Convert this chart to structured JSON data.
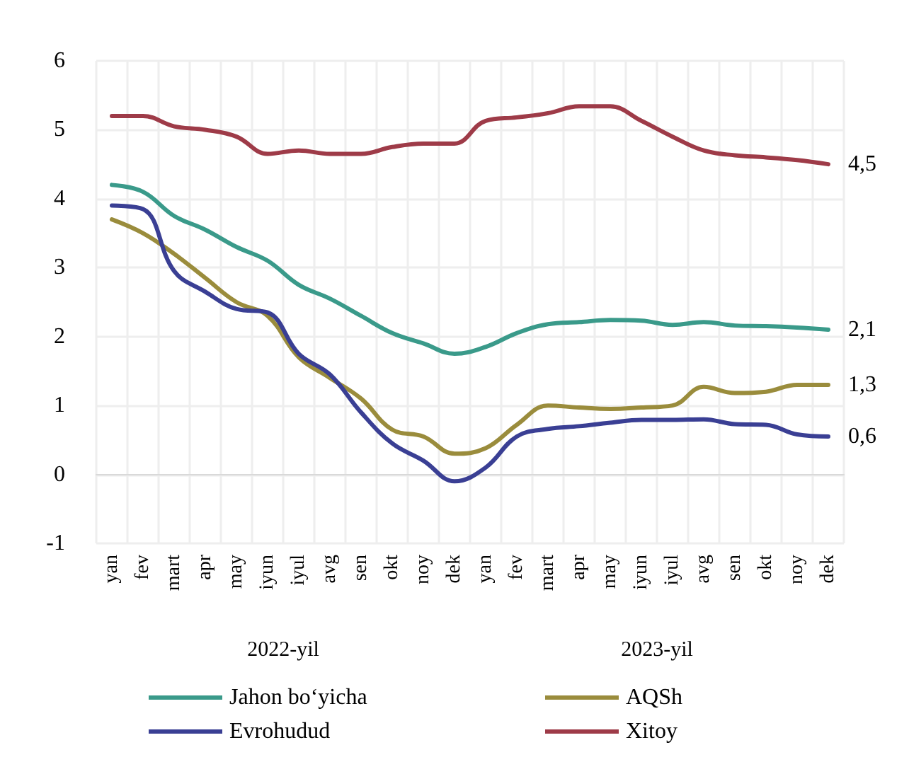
{
  "chart_data": {
    "type": "line",
    "categories": [
      "yan",
      "fev",
      "mart",
      "apr",
      "may",
      "iyun",
      "iyul",
      "avg",
      "sen",
      "okt",
      "noy",
      "dek",
      "yan",
      "fev",
      "mart",
      "apr",
      "may",
      "iyun",
      "iyul",
      "avg",
      "sen",
      "okt",
      "noy",
      "dek"
    ],
    "series": [
      {
        "name": "Jahon bo‘yicha",
        "color": "#3a9a8a",
        "values": [
          4.2,
          4.1,
          3.75,
          3.55,
          3.3,
          3.1,
          2.75,
          2.55,
          2.3,
          2.05,
          1.9,
          1.75,
          1.85,
          2.05,
          2.18,
          2.21,
          2.24,
          2.23,
          2.17,
          2.21,
          2.16,
          2.15,
          2.13,
          2.1
        ],
        "value_labels": [
          null,
          null,
          null,
          null,
          null,
          null,
          null,
          null,
          null,
          null,
          null,
          null,
          null,
          null,
          null,
          null,
          null,
          null,
          null,
          null,
          null,
          null,
          null,
          "2,1"
        ]
      },
      {
        "name": "AQSh",
        "color": "#9a8c3c",
        "values": [
          3.7,
          3.5,
          3.2,
          2.85,
          2.5,
          2.3,
          1.7,
          1.4,
          1.1,
          0.65,
          0.55,
          0.3,
          0.38,
          0.72,
          1.0,
          0.97,
          0.95,
          0.97,
          1.0,
          1.27,
          1.18,
          1.2,
          1.3,
          1.3
        ],
        "value_labels": [
          null,
          null,
          null,
          null,
          null,
          null,
          null,
          null,
          null,
          null,
          null,
          null,
          null,
          null,
          null,
          null,
          null,
          null,
          null,
          null,
          null,
          null,
          null,
          "1,3"
        ]
      },
      {
        "name": "Evrohudud",
        "color": "#3a3f94",
        "values": [
          3.9,
          3.85,
          2.95,
          2.65,
          2.4,
          2.35,
          1.75,
          1.45,
          0.9,
          0.45,
          0.2,
          -0.1,
          0.1,
          0.55,
          0.66,
          0.7,
          0.75,
          0.79,
          0.79,
          0.8,
          0.73,
          0.72,
          0.58,
          0.55
        ],
        "value_labels": [
          null,
          null,
          null,
          null,
          null,
          null,
          null,
          null,
          null,
          null,
          null,
          null,
          null,
          null,
          null,
          null,
          null,
          null,
          null,
          null,
          null,
          null,
          null,
          "0,6"
        ]
      },
      {
        "name": "Xitoy",
        "color": "#9e3b48",
        "values": [
          5.2,
          5.2,
          5.05,
          5.0,
          4.9,
          4.65,
          4.7,
          4.65,
          4.65,
          4.75,
          4.8,
          4.8,
          5.13,
          5.18,
          5.24,
          5.34,
          5.34,
          5.13,
          4.9,
          4.7,
          4.63,
          4.6,
          4.56,
          4.5
        ],
        "value_labels": [
          null,
          null,
          null,
          null,
          null,
          null,
          null,
          null,
          null,
          null,
          null,
          null,
          null,
          null,
          null,
          null,
          null,
          null,
          null,
          null,
          null,
          null,
          null,
          "4,5"
        ]
      }
    ],
    "ylim": [
      -1,
      6
    ],
    "yticks": [
      -1,
      0,
      1,
      2,
      3,
      4,
      5,
      6
    ],
    "annotations": [
      "2022-yil",
      "2023-yil"
    ],
    "grid": true,
    "legend": "bottom",
    "marker": "none",
    "line_style": "solid"
  }
}
